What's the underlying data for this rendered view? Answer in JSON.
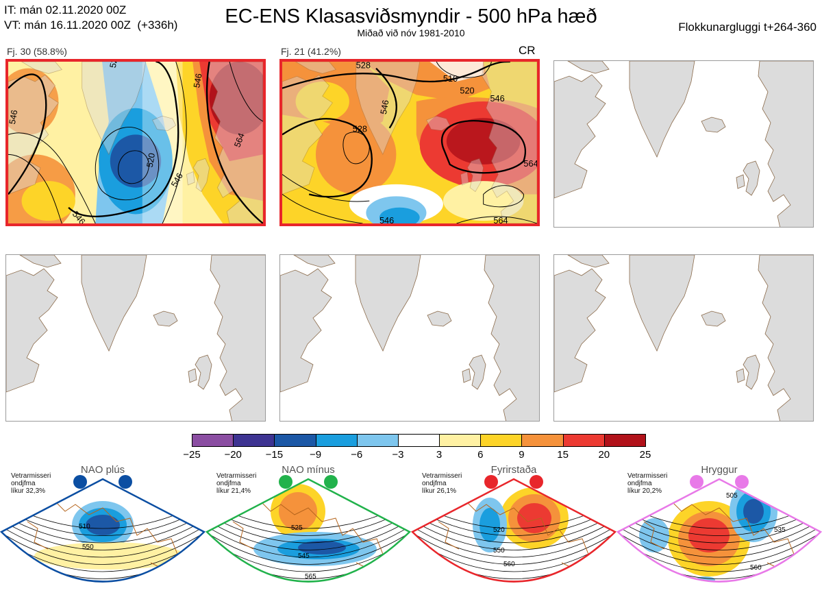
{
  "header": {
    "it_line": "IT: mán 02.11.2020 00Z",
    "vt_line": "VT: mán 16.11.2020 00Z  (+336h)",
    "title": "EC-ENS Klasasviðsmyndir - 500 hPa hæð",
    "subtitle": "Miðað við nóv 1981-2010",
    "window": "Flokkunargluggi t+264-360"
  },
  "panels": [
    {
      "label": "Fj. 30 (58.8%)",
      "active": true,
      "contours": [
        "546",
        "528",
        "546",
        "546",
        "564",
        "546",
        "520"
      ]
    },
    {
      "label": "Fj. 21 (41.2%)",
      "active": true,
      "tag": "CR",
      "contours": [
        "528",
        "510",
        "520",
        "546",
        "528",
        "546",
        "564",
        "546",
        "564"
      ]
    },
    {
      "label": "",
      "active": false
    },
    {
      "label": "",
      "active": false
    },
    {
      "label": "",
      "active": false
    },
    {
      "label": "",
      "active": false
    }
  ],
  "colorbar": {
    "ticks": [
      "−25",
      "−20",
      "−15",
      "−9",
      "−6",
      "−3",
      "3",
      "6",
      "9",
      "15",
      "20",
      "25"
    ],
    "colors": [
      "#8b4ea2",
      "#3e3492",
      "#1c58a6",
      "#1a9ede",
      "#7ec6ee",
      "#ffffff",
      "#fff1a3",
      "#fdd428",
      "#f5923b",
      "#ec3a32",
      "#b1121a"
    ]
  },
  "regimes": [
    {
      "name": "NAO plús",
      "note": [
        "Vetrarmisseri",
        "ondjfma",
        "líkur 32,3%"
      ],
      "color": "#0b4ea2",
      "contours": [
        "510",
        "550"
      ]
    },
    {
      "name": "NAO mínus",
      "note": [
        "Vetrarmisseri",
        "ondjfma",
        "líkur 21,4%"
      ],
      "color": "#21b24b",
      "contours": [
        "525",
        "545",
        "565"
      ]
    },
    {
      "name": "Fyrirstaða",
      "note": [
        "Vetrarmisseri",
        "ondjfma",
        "líkur 26,1%"
      ],
      "color": "#e8262b",
      "contours": [
        "520",
        "550",
        "560"
      ]
    },
    {
      "name": "Hryggur",
      "note": [
        "Vetrarmisseri",
        "ondjfma",
        "líkur 20,2%"
      ],
      "color": "#e879e8",
      "contours": [
        "505",
        "535",
        "560"
      ]
    }
  ]
}
